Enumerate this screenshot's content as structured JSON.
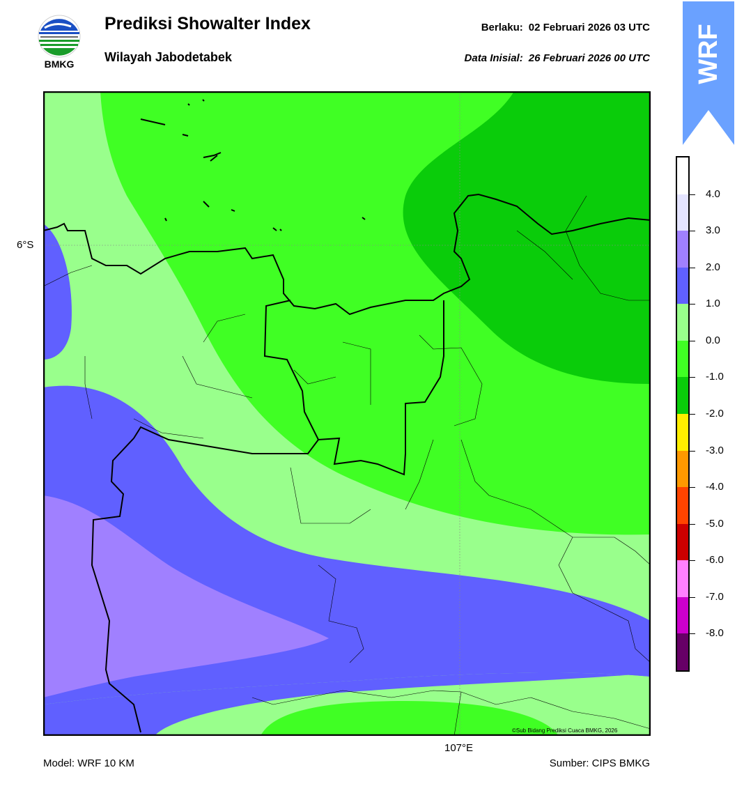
{
  "header": {
    "logo_text": "BMKG",
    "title": "Prediksi Showalter Index",
    "subtitle": "Wilayah Jabodetabek",
    "valid_label": "Berlaku:",
    "valid_value": "02 Februari 2026 03 UTC",
    "init_label": "Data Inisial:",
    "init_value": "26 Februari 2026 00 UTC",
    "ribbon_text": "WRF",
    "ribbon_color": "#6aa1ff"
  },
  "map": {
    "lat_label": "6°S",
    "lon_label": "107°E",
    "copyright": "©Sub Bidang Prediksi Cuaca BMKG, 2026"
  },
  "colorbar": {
    "ticks": [
      "4.0",
      "3.0",
      "2.0",
      "1.0",
      "0.0",
      "-1.0",
      "-2.0",
      "-3.0",
      "-4.0",
      "-5.0",
      "-6.0",
      "-7.0",
      "-8.0"
    ],
    "colors": [
      "#ffffff",
      "#e4e4ff",
      "#a080ff",
      "#6060ff",
      "#99ff8c",
      "#40ff24",
      "#0acc0a",
      "#ffee00",
      "#ff9900",
      "#ff4400",
      "#cc0000",
      "#ff80ff",
      "#cc00cc",
      "#660066"
    ]
  },
  "footer": {
    "model": "Model: WRF 10 KM",
    "source": "Sumber: CIPS BMKG"
  }
}
